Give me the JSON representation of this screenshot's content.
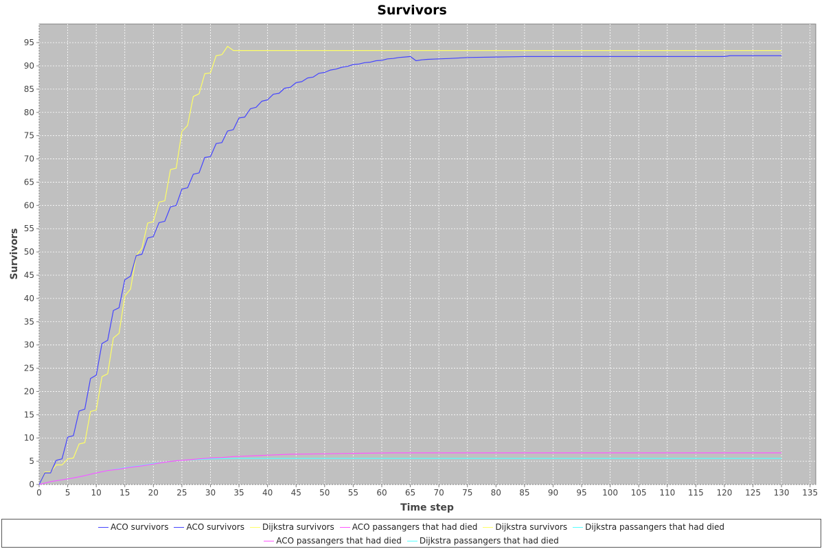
{
  "chart_data": {
    "type": "line",
    "title": "Survivors",
    "xlabel": "Time step",
    "ylabel": "Survivors",
    "xlim": [
      0,
      136
    ],
    "ylim": [
      0,
      99
    ],
    "xticks": [
      0,
      5,
      10,
      15,
      20,
      25,
      30,
      35,
      40,
      45,
      50,
      55,
      60,
      65,
      70,
      75,
      80,
      85,
      90,
      95,
      100,
      105,
      110,
      115,
      120,
      125,
      130,
      135
    ],
    "yticks": [
      0,
      5,
      10,
      15,
      20,
      25,
      30,
      35,
      40,
      45,
      50,
      55,
      60,
      65,
      70,
      75,
      80,
      85,
      90,
      95
    ],
    "grid": true,
    "plot_background": "#c0c0c0",
    "grid_color": "#ffffff",
    "legend_position": "bottom",
    "series": [
      {
        "name": "ACO survivors",
        "color": "#4444ff",
        "points": [
          [
            0,
            0
          ],
          [
            1,
            2.5
          ],
          [
            2,
            2.5
          ],
          [
            3,
            5.2
          ],
          [
            4,
            5.5
          ],
          [
            5,
            10.2
          ],
          [
            6,
            10.5
          ],
          [
            7,
            15.8
          ],
          [
            8,
            16.2
          ],
          [
            9,
            22.8
          ],
          [
            10,
            23.5
          ],
          [
            11,
            30.3
          ],
          [
            12,
            31
          ],
          [
            13,
            37.4
          ],
          [
            14,
            38
          ],
          [
            15,
            44
          ],
          [
            16,
            44.8
          ],
          [
            17,
            49.2
          ],
          [
            18,
            49.5
          ],
          [
            19,
            53
          ],
          [
            20,
            53.3
          ],
          [
            21,
            56.3
          ],
          [
            22,
            56.6
          ],
          [
            23,
            59.7
          ],
          [
            24,
            60
          ],
          [
            25,
            63.5
          ],
          [
            26,
            63.8
          ],
          [
            27,
            66.7
          ],
          [
            28,
            67
          ],
          [
            29,
            70.3
          ],
          [
            30,
            70.5
          ],
          [
            31,
            73.3
          ],
          [
            32,
            73.5
          ],
          [
            33,
            76
          ],
          [
            34,
            76.3
          ],
          [
            35,
            78.8
          ],
          [
            36,
            79
          ],
          [
            37,
            80.8
          ],
          [
            38,
            81.1
          ],
          [
            39,
            82.4
          ],
          [
            40,
            82.7
          ],
          [
            41,
            83.9
          ],
          [
            42,
            84.1
          ],
          [
            43,
            85.2
          ],
          [
            44,
            85.4
          ],
          [
            45,
            86.4
          ],
          [
            46,
            86.6
          ],
          [
            47,
            87.4
          ],
          [
            48,
            87.6
          ],
          [
            49,
            88.4
          ],
          [
            50,
            88.6
          ],
          [
            51,
            89.1
          ],
          [
            52,
            89.3
          ],
          [
            53,
            89.7
          ],
          [
            54,
            89.9
          ],
          [
            55,
            90.3
          ],
          [
            56,
            90.4
          ],
          [
            57,
            90.7
          ],
          [
            58,
            90.8
          ],
          [
            59,
            91.1
          ],
          [
            60,
            91.2
          ],
          [
            61,
            91.5
          ],
          [
            62,
            91.6
          ],
          [
            63,
            91.8
          ],
          [
            64,
            91.9
          ],
          [
            65,
            92
          ],
          [
            66,
            91.1
          ],
          [
            67,
            91.3
          ],
          [
            68,
            91.4
          ],
          [
            70,
            91.5
          ],
          [
            72,
            91.6
          ],
          [
            75,
            91.8
          ],
          [
            80,
            91.9
          ],
          [
            85,
            92
          ],
          [
            90,
            92
          ],
          [
            100,
            92
          ],
          [
            110,
            92
          ],
          [
            120,
            92
          ],
          [
            121,
            92.2
          ],
          [
            125,
            92.2
          ],
          [
            130,
            92.2
          ]
        ]
      },
      {
        "name": "Dijkstra survivors",
        "color": "#ffff66",
        "points": [
          [
            0,
            0
          ],
          [
            1,
            2.7
          ],
          [
            2,
            2.7
          ],
          [
            3,
            4.2
          ],
          [
            4,
            4.2
          ],
          [
            5,
            5.5
          ],
          [
            6,
            5.7
          ],
          [
            7,
            8.7
          ],
          [
            8,
            9
          ],
          [
            9,
            15.7
          ],
          [
            10,
            16
          ],
          [
            11,
            23.2
          ],
          [
            12,
            23.8
          ],
          [
            13,
            31.5
          ],
          [
            14,
            32.5
          ],
          [
            15,
            40.5
          ],
          [
            16,
            42
          ],
          [
            17,
            49.2
          ],
          [
            18,
            50.8
          ],
          [
            19,
            56.2
          ],
          [
            20,
            56.5
          ],
          [
            21,
            60.7
          ],
          [
            22,
            61
          ],
          [
            23,
            67.7
          ],
          [
            24,
            68
          ],
          [
            25,
            75.9
          ],
          [
            26,
            77.2
          ],
          [
            27,
            83.4
          ],
          [
            28,
            84
          ],
          [
            29,
            88.3
          ],
          [
            30,
            88.5
          ],
          [
            31,
            92.2
          ],
          [
            32,
            92.4
          ],
          [
            33,
            94.2
          ],
          [
            34,
            93.3
          ],
          [
            40,
            93.3
          ],
          [
            60,
            93.3
          ],
          [
            80,
            93.3
          ],
          [
            100,
            93.3
          ],
          [
            120,
            93.3
          ],
          [
            130,
            93.3
          ]
        ]
      },
      {
        "name": "ACO passangers that had died",
        "color": "#ff55ff",
        "points": [
          [
            0,
            0
          ],
          [
            2,
            0.6
          ],
          [
            4,
            1
          ],
          [
            6,
            1.4
          ],
          [
            8,
            1.9
          ],
          [
            10,
            2.5
          ],
          [
            12,
            3
          ],
          [
            14,
            3.3
          ],
          [
            16,
            3.7
          ],
          [
            18,
            4
          ],
          [
            20,
            4.4
          ],
          [
            22,
            4.8
          ],
          [
            24,
            5.1
          ],
          [
            26,
            5.3
          ],
          [
            28,
            5.5
          ],
          [
            30,
            5.7
          ],
          [
            32,
            5.8
          ],
          [
            34,
            6
          ],
          [
            36,
            6.1
          ],
          [
            40,
            6.3
          ],
          [
            44,
            6.5
          ],
          [
            50,
            6.6
          ],
          [
            55,
            6.7
          ],
          [
            62,
            6.8
          ],
          [
            70,
            6.8
          ],
          [
            90,
            6.8
          ],
          [
            110,
            6.8
          ],
          [
            130,
            6.8
          ]
        ]
      },
      {
        "name": "Dijkstra passangers that had died",
        "color": "#55ffff",
        "points": [
          [
            0,
            0
          ],
          [
            2,
            0.6
          ],
          [
            4,
            1
          ],
          [
            6,
            1.4
          ],
          [
            8,
            1.9
          ],
          [
            10,
            2.5
          ],
          [
            12,
            3
          ],
          [
            14,
            3.4
          ],
          [
            16,
            3.8
          ],
          [
            18,
            4.1
          ],
          [
            20,
            4.5
          ],
          [
            22,
            4.8
          ],
          [
            24,
            5.1
          ],
          [
            26,
            5.3
          ],
          [
            28,
            5.4
          ],
          [
            30,
            5.5
          ],
          [
            35,
            5.6
          ],
          [
            40,
            5.6
          ],
          [
            60,
            5.6
          ],
          [
            80,
            5.6
          ],
          [
            100,
            5.6
          ],
          [
            130,
            5.6
          ]
        ]
      }
    ],
    "legend": [
      {
        "label": "ACO survivors",
        "color": "#4444ff"
      },
      {
        "label": "ACO survivors",
        "color": "#4444ff"
      },
      {
        "label": "Dijkstra survivors",
        "color": "#ffff66"
      },
      {
        "label": "ACO passangers that had died",
        "color": "#ff55ff"
      },
      {
        "label": "Dijkstra survivors",
        "color": "#ffff66"
      },
      {
        "label": "Dijkstra passangers that had died",
        "color": "#55ffff"
      },
      {
        "label": "ACO passangers that had died",
        "color": "#ff55ff"
      },
      {
        "label": "Dijkstra passangers that had died",
        "color": "#55ffff"
      }
    ]
  }
}
